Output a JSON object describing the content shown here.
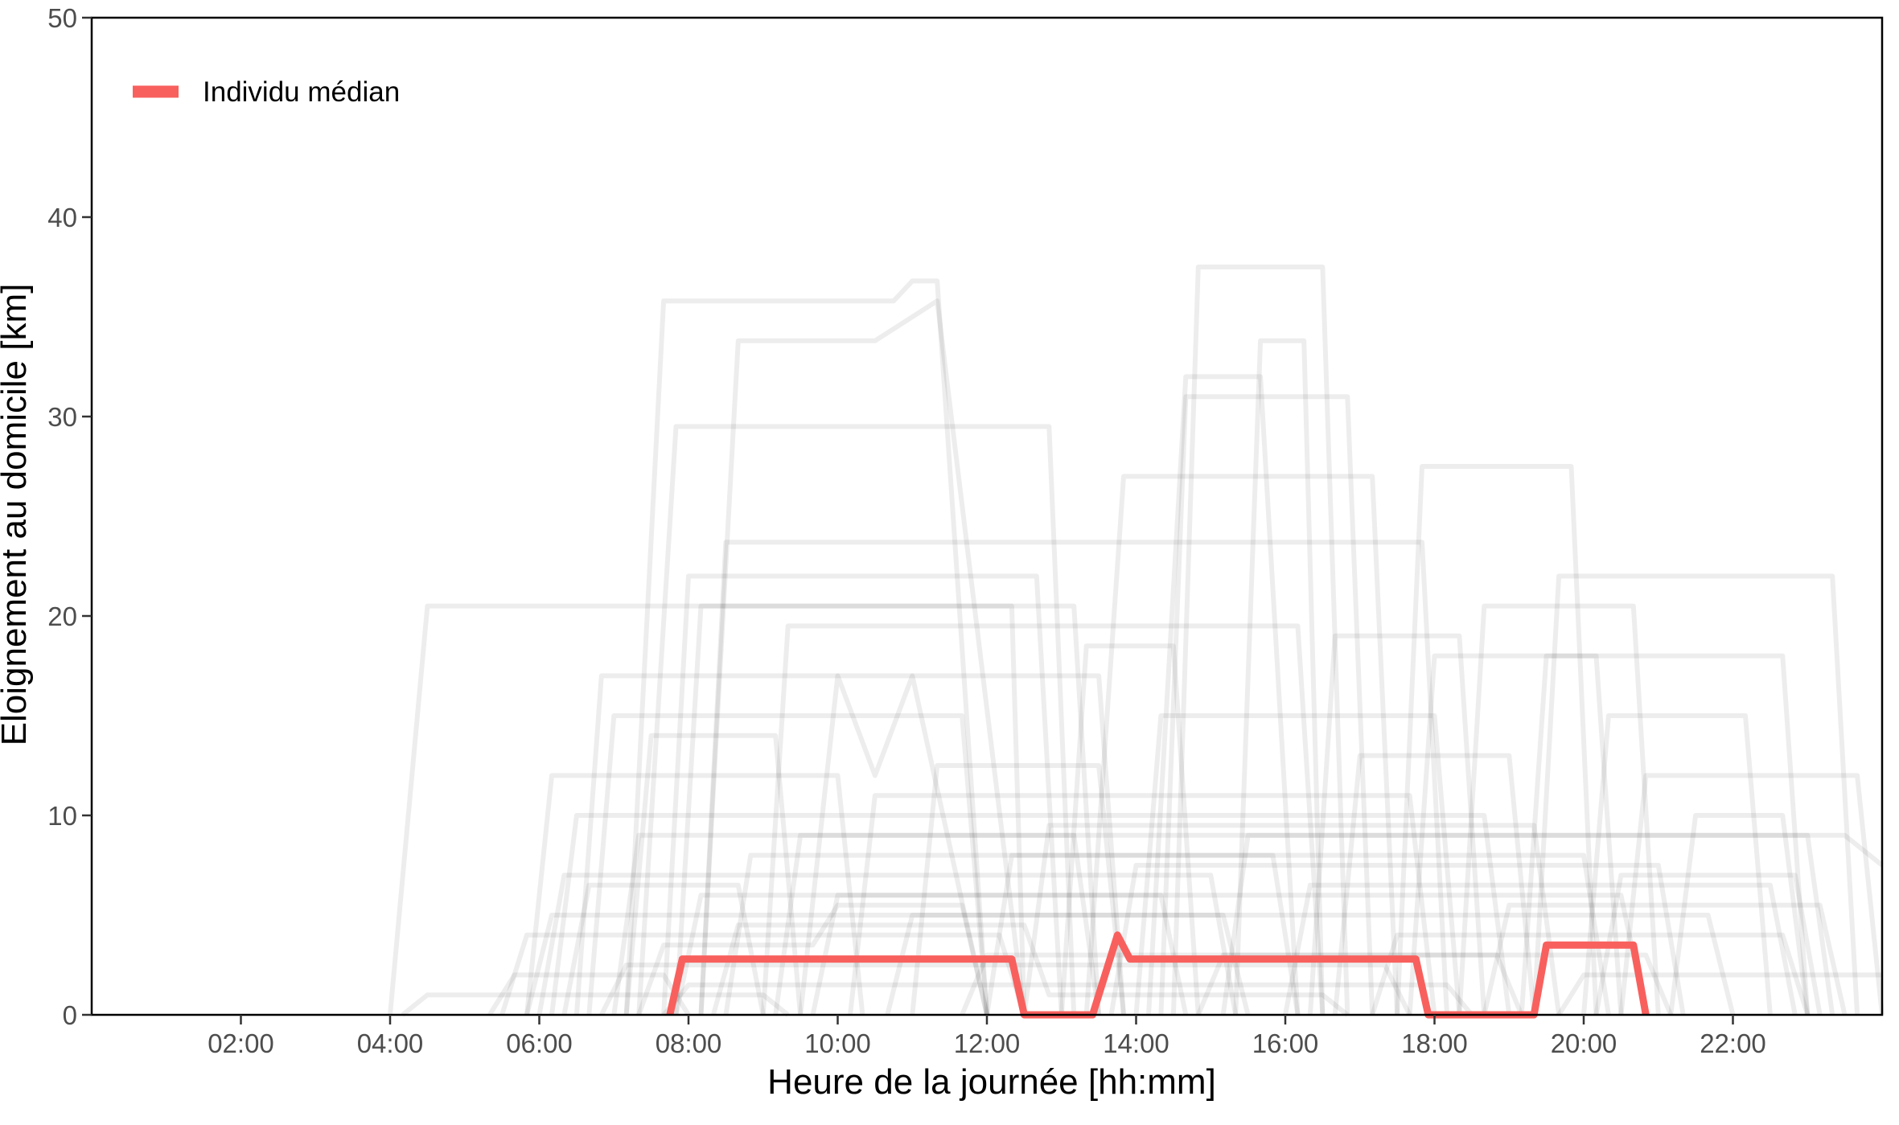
{
  "chart_data": {
    "type": "line",
    "title": "",
    "xlabel": "Heure de la journée [hh:mm]",
    "ylabel": "Eloignement au domicile [km]",
    "xlim": [
      "00:00",
      "24:00"
    ],
    "ylim": [
      0,
      50
    ],
    "x_ticks": [
      "02:00",
      "04:00",
      "06:00",
      "08:00",
      "10:00",
      "12:00",
      "14:00",
      "16:00",
      "18:00",
      "20:00",
      "22:00"
    ],
    "y_ticks": [
      "0",
      "10",
      "20",
      "30",
      "40",
      "50"
    ],
    "grid": false,
    "legend": {
      "position": "top-left",
      "entries": [
        "Individu médian"
      ]
    },
    "colors": {
      "median": "#f8605e",
      "background_series": "#000000",
      "axis": "#000000"
    },
    "median_series": {
      "name": "Individu médian",
      "x": [
        "07:45",
        "07:55",
        "12:20",
        "12:30",
        "13:25",
        "13:45",
        "13:55",
        "17:45",
        "17:55",
        "19:20",
        "19:30",
        "20:40",
        "20:50"
      ],
      "y": [
        0,
        2.8,
        2.8,
        0,
        0,
        4.0,
        2.8,
        2.8,
        0,
        0,
        3.5,
        3.5,
        0
      ]
    },
    "background_series_note": "individual trajectories (semi-transparent)",
    "background_series": [
      {
        "x": [
          "04:00",
          "04:30",
          "12:20",
          "12:30"
        ],
        "y": [
          0,
          20.5,
          20.5,
          0
        ]
      },
      {
        "x": [
          "07:10",
          "07:40",
          "10:45",
          "11:00",
          "11:20",
          "12:00"
        ],
        "y": [
          0,
          35.8,
          35.8,
          36.8,
          36.8,
          0
        ]
      },
      {
        "x": [
          "08:10",
          "08:40",
          "10:30",
          "11:20",
          "12:30"
        ],
        "y": [
          0,
          33.8,
          33.8,
          35.8,
          0
        ]
      },
      {
        "x": [
          "07:20",
          "07:50",
          "12:50",
          "13:10"
        ],
        "y": [
          0,
          29.5,
          29.5,
          0
        ]
      },
      {
        "x": [
          "14:30",
          "14:50",
          "16:30",
          "16:50"
        ],
        "y": [
          0,
          37.5,
          37.5,
          0
        ]
      },
      {
        "x": [
          "15:20",
          "15:40",
          "16:15",
          "16:30"
        ],
        "y": [
          0,
          33.8,
          33.8,
          0
        ]
      },
      {
        "x": [
          "14:10",
          "14:40",
          "15:40",
          "16:10"
        ],
        "y": [
          0,
          32.0,
          32.0,
          0
        ]
      },
      {
        "x": [
          "13:20",
          "13:50",
          "17:10",
          "17:30"
        ],
        "y": [
          0,
          27.0,
          27.0,
          0
        ]
      },
      {
        "x": [
          "17:30",
          "17:50",
          "19:50",
          "20:10"
        ],
        "y": [
          0,
          27.5,
          27.5,
          0
        ]
      },
      {
        "x": [
          "14:20",
          "14:40",
          "16:50",
          "17:10"
        ],
        "y": [
          0,
          31.0,
          31.0,
          0
        ]
      },
      {
        "x": [
          "08:10",
          "08:30",
          "17:50",
          "18:10"
        ],
        "y": [
          0,
          23.7,
          23.7,
          0
        ]
      },
      {
        "x": [
          "07:40",
          "08:00",
          "12:40",
          "13:00"
        ],
        "y": [
          0,
          22.0,
          22.0,
          0
        ]
      },
      {
        "x": [
          "19:20",
          "19:40",
          "23:20",
          "23:40"
        ],
        "y": [
          0,
          22.0,
          22.0,
          0
        ]
      },
      {
        "x": [
          "18:20",
          "18:40",
          "20:40",
          "21:00"
        ],
        "y": [
          0,
          20.5,
          20.5,
          0
        ]
      },
      {
        "x": [
          "07:50",
          "08:10",
          "13:10",
          "13:30"
        ],
        "y": [
          0,
          20.5,
          20.5,
          0
        ]
      },
      {
        "x": [
          "09:00",
          "09:20",
          "16:10",
          "16:30"
        ],
        "y": [
          0,
          19.5,
          19.5,
          0
        ]
      },
      {
        "x": [
          "19:10",
          "19:30",
          "22:40",
          "23:00"
        ],
        "y": [
          0,
          18.0,
          18.0,
          0
        ]
      },
      {
        "x": [
          "06:30",
          "06:50",
          "13:30",
          "13:50"
        ],
        "y": [
          0,
          17.0,
          17.0,
          0
        ]
      },
      {
        "x": [
          "17:40",
          "18:00",
          "20:10",
          "20:30"
        ],
        "y": [
          0,
          18.0,
          18.0,
          0
        ]
      },
      {
        "x": [
          "20:00",
          "20:20",
          "22:10",
          "22:30"
        ],
        "y": [
          0,
          15.0,
          15.0,
          0
        ]
      },
      {
        "x": [
          "09:30",
          "10:00",
          "10:30",
          "11:00",
          "12:00"
        ],
        "y": [
          0,
          17.0,
          12.0,
          17.0,
          0
        ]
      },
      {
        "x": [
          "06:40",
          "07:00",
          "11:40",
          "12:00"
        ],
        "y": [
          0,
          15.0,
          15.0,
          0
        ]
      },
      {
        "x": [
          "05:50",
          "06:10",
          "10:00",
          "10:20"
        ],
        "y": [
          0,
          12.0,
          12.0,
          0
        ]
      },
      {
        "x": [
          "14:00",
          "14:20",
          "18:00",
          "18:20"
        ],
        "y": [
          0,
          15.0,
          15.0,
          0
        ]
      },
      {
        "x": [
          "20:30",
          "20:50",
          "23:40",
          "24:00"
        ],
        "y": [
          0,
          12.0,
          12.0,
          0
        ]
      },
      {
        "x": [
          "06:10",
          "06:30",
          "18:40",
          "19:00"
        ],
        "y": [
          0,
          10.0,
          10.0,
          0
        ]
      },
      {
        "x": [
          "07:00",
          "07:20",
          "23:00",
          "23:20"
        ],
        "y": [
          0,
          9.0,
          9.0,
          0
        ]
      },
      {
        "x": [
          "06:00",
          "06:20",
          "15:00",
          "15:20"
        ],
        "y": [
          0,
          7.0,
          7.0,
          0
        ]
      },
      {
        "x": [
          "16:00",
          "16:20",
          "22:30",
          "22:50"
        ],
        "y": [
          0,
          6.5,
          6.5,
          0
        ]
      },
      {
        "x": [
          "05:50",
          "06:10",
          "21:40",
          "22:00"
        ],
        "y": [
          0,
          5.0,
          5.0,
          0
        ]
      },
      {
        "x": [
          "04:10",
          "04:30",
          "09:00",
          "09:20"
        ],
        "y": [
          0,
          1.0,
          1.0,
          0
        ]
      },
      {
        "x": [
          "05:30",
          "05:50",
          "12:10",
          "12:30"
        ],
        "y": [
          0,
          4.0,
          4.0,
          0
        ]
      },
      {
        "x": [
          "07:50",
          "08:10",
          "14:20",
          "14:40"
        ],
        "y": [
          0,
          6.0,
          6.0,
          0
        ]
      },
      {
        "x": [
          "08:30",
          "08:50",
          "20:00",
          "20:20"
        ],
        "y": [
          0,
          8.0,
          8.0,
          0
        ]
      },
      {
        "x": [
          "10:10",
          "10:30",
          "17:40",
          "18:00"
        ],
        "y": [
          0,
          11.0,
          11.0,
          0
        ]
      },
      {
        "x": [
          "12:30",
          "12:50",
          "19:20",
          "19:40"
        ],
        "y": [
          0,
          9.5,
          9.5,
          0
        ]
      },
      {
        "x": [
          "13:40",
          "14:00",
          "21:00",
          "21:20"
        ],
        "y": [
          0,
          7.5,
          7.5,
          0
        ]
      },
      {
        "x": [
          "15:10",
          "15:30",
          "23:30",
          "24:00"
        ],
        "y": [
          0,
          9.0,
          9.0,
          7.5
        ]
      },
      {
        "x": [
          "07:20",
          "07:40",
          "09:40",
          "10:00",
          "11:40",
          "12:00"
        ],
        "y": [
          0,
          3.5,
          3.5,
          5.5,
          5.5,
          0
        ]
      },
      {
        "x": [
          "11:00",
          "11:20",
          "13:30",
          "13:50"
        ],
        "y": [
          0,
          12.5,
          12.5,
          0
        ]
      },
      {
        "x": [
          "16:40",
          "17:00",
          "19:00",
          "19:20"
        ],
        "y": [
          0,
          13.0,
          13.0,
          0
        ]
      },
      {
        "x": [
          "18:40",
          "19:00",
          "23:10",
          "23:30"
        ],
        "y": [
          0,
          5.5,
          5.5,
          0
        ]
      },
      {
        "x": [
          "06:50",
          "07:10",
          "17:20",
          "17:40"
        ],
        "y": [
          0,
          2.5,
          2.5,
          0
        ]
      },
      {
        "x": [
          "07:40",
          "08:00",
          "18:10",
          "18:30"
        ],
        "y": [
          0,
          1.5,
          1.5,
          0
        ]
      },
      {
        "x": [
          "08:20",
          "08:40",
          "12:30",
          "12:50",
          "16:30",
          "16:50"
        ],
        "y": [
          0,
          4.5,
          4.5,
          1.0,
          1.0,
          0
        ]
      },
      {
        "x": [
          "09:10",
          "09:30",
          "13:10",
          "13:30"
        ],
        "y": [
          0,
          9.0,
          9.0,
          0
        ]
      },
      {
        "x": [
          "14:50",
          "15:10",
          "20:50",
          "21:10"
        ],
        "y": [
          0,
          3.0,
          3.0,
          0
        ]
      },
      {
        "x": [
          "17:10",
          "17:30",
          "22:40",
          "23:00"
        ],
        "y": [
          0,
          4.0,
          4.0,
          0
        ]
      },
      {
        "x": [
          "19:40",
          "20:00",
          "23:50",
          "24:00"
        ],
        "y": [
          0,
          2.0,
          2.0,
          2.0
        ]
      },
      {
        "x": [
          "12:00",
          "12:20",
          "15:50",
          "16:10"
        ],
        "y": [
          0,
          8.0,
          8.0,
          0
        ]
      },
      {
        "x": [
          "06:20",
          "06:40",
          "08:40",
          "09:00"
        ],
        "y": [
          0,
          6.5,
          6.5,
          0
        ]
      },
      {
        "x": [
          "10:40",
          "11:00",
          "15:10",
          "15:30"
        ],
        "y": [
          0,
          5.0,
          5.0,
          0
        ]
      },
      {
        "x": [
          "13:00",
          "13:20",
          "14:30",
          "14:50"
        ],
        "y": [
          0,
          18.5,
          18.5,
          0
        ]
      },
      {
        "x": [
          "21:10",
          "21:30",
          "22:40",
          "23:00"
        ],
        "y": [
          0,
          10.0,
          10.0,
          0
        ]
      },
      {
        "x": [
          "11:40",
          "12:00",
          "18:50",
          "19:10"
        ],
        "y": [
          0,
          3.0,
          3.0,
          0
        ]
      },
      {
        "x": [
          "09:40",
          "10:00",
          "20:30",
          "20:50"
        ],
        "y": [
          0,
          6.0,
          6.0,
          0
        ]
      },
      {
        "x": [
          "16:20",
          "16:40",
          "18:20",
          "18:40"
        ],
        "y": [
          0,
          19.0,
          19.0,
          0
        ]
      },
      {
        "x": [
          "07:10",
          "07:30",
          "09:10",
          "09:30"
        ],
        "y": [
          0,
          14.0,
          14.0,
          0
        ]
      },
      {
        "x": [
          "20:10",
          "20:30",
          "22:50",
          "23:10"
        ],
        "y": [
          0,
          7.0,
          7.0,
          0
        ]
      },
      {
        "x": [
          "05:20",
          "05:40",
          "07:40",
          "08:00"
        ],
        "y": [
          0,
          2.0,
          2.0,
          0
        ]
      }
    ]
  }
}
